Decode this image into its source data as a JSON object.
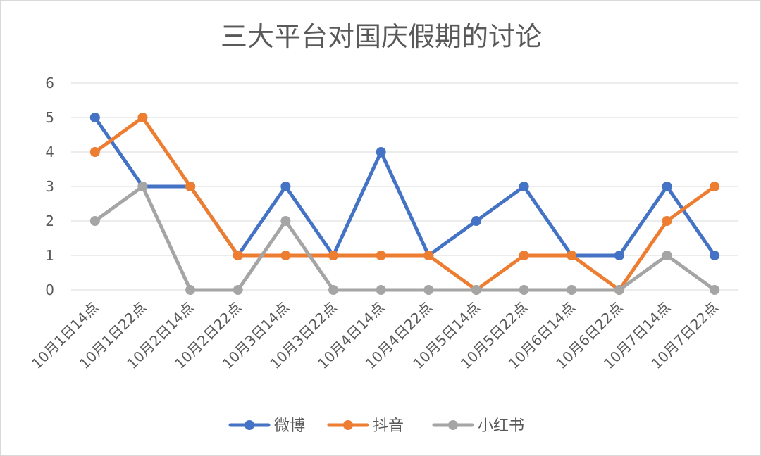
{
  "chart_data": {
    "type": "line",
    "title": "三大平台对国庆假期的讨论",
    "categories": [
      "10月1日14点",
      "10月1日22点",
      "10月2日14点",
      "10月2日22点",
      "10月3日14点",
      "10月3日22点",
      "10月4日14点",
      "10月4日22点",
      "10月5日14点",
      "10月5日22点",
      "10月6日14点",
      "10月6日22点",
      "10月7日14点",
      "10月7日22点"
    ],
    "ylim": [
      0,
      6
    ],
    "yticks": [
      0,
      1,
      2,
      3,
      4,
      5,
      6
    ],
    "grid": true,
    "legend_position": "bottom",
    "series": [
      {
        "name": "微博",
        "color": "#4472C4",
        "values": [
          5,
          3,
          3,
          1,
          3,
          1,
          4,
          1,
          2,
          3,
          1,
          1,
          3,
          1
        ]
      },
      {
        "name": "抖音",
        "color": "#ED7D31",
        "values": [
          4,
          5,
          3,
          1,
          1,
          1,
          1,
          1,
          0,
          1,
          1,
          0,
          2,
          3
        ]
      },
      {
        "name": "小红书",
        "color": "#A5A5A5",
        "values": [
          2,
          3,
          0,
          0,
          2,
          0,
          0,
          0,
          0,
          0,
          0,
          0,
          1,
          0
        ]
      }
    ]
  }
}
